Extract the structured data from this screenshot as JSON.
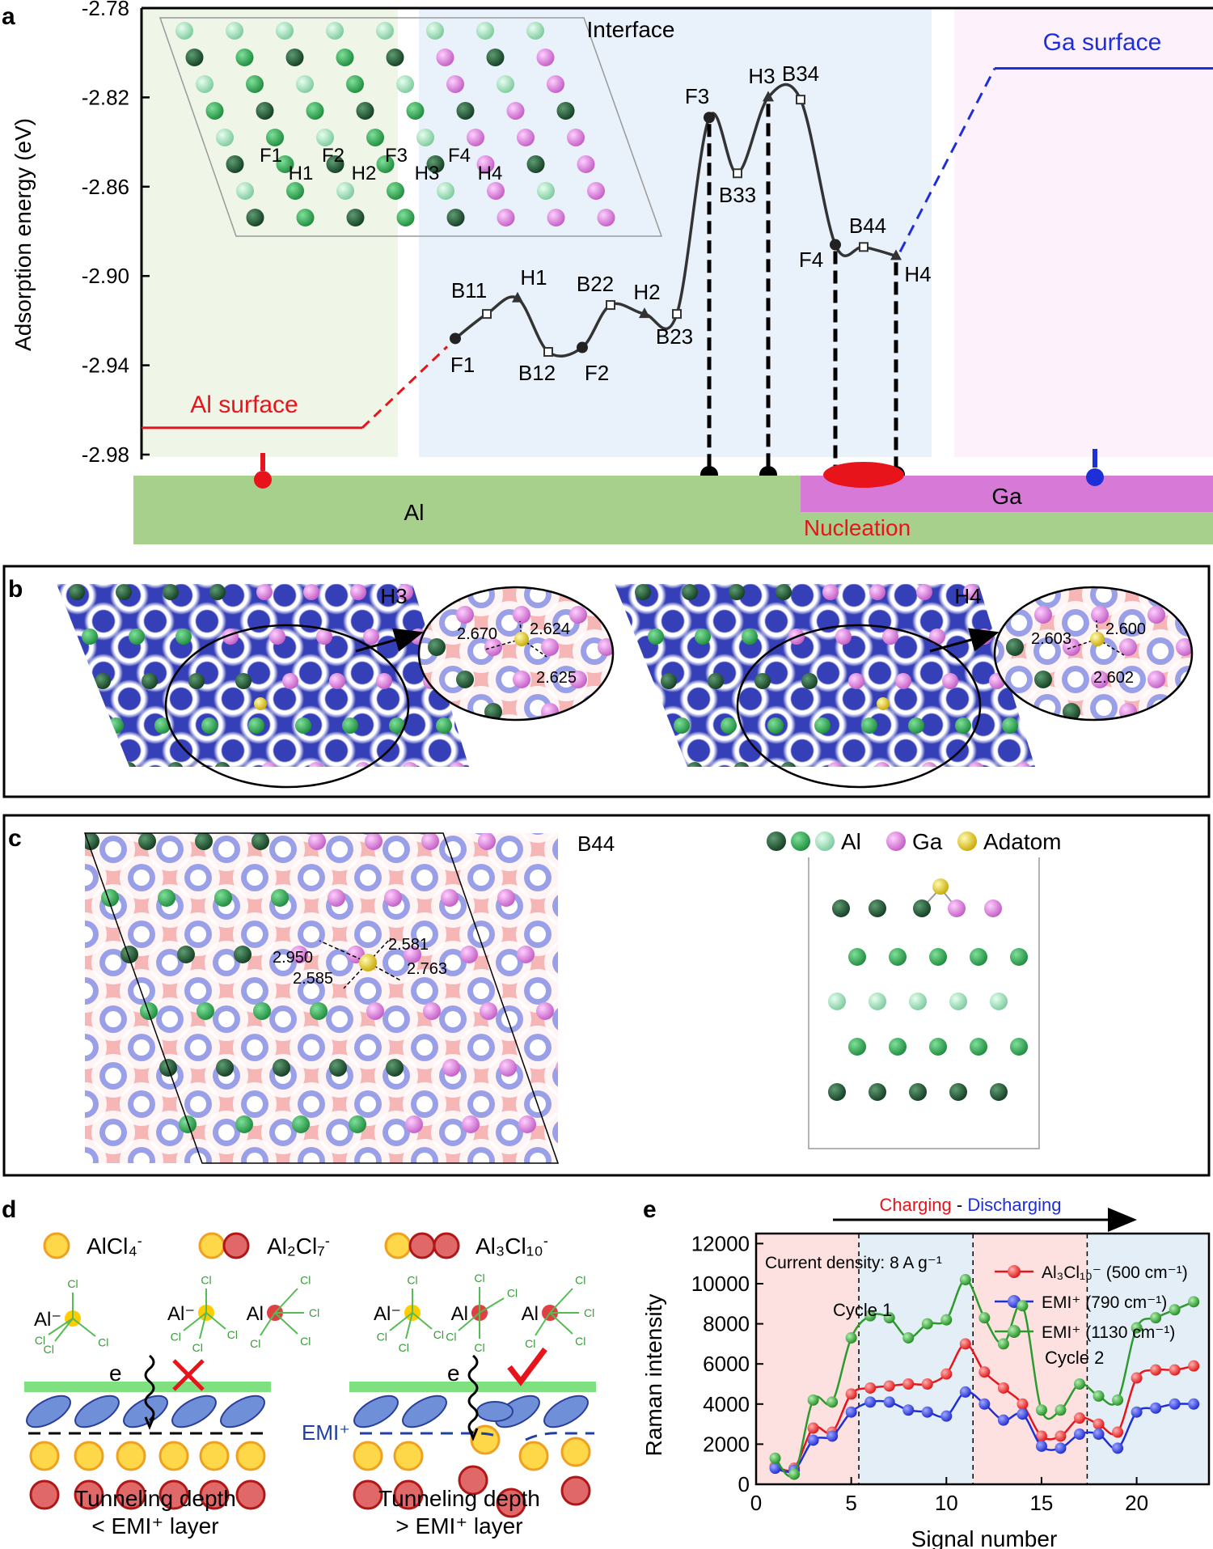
{
  "colors": {
    "al_dark": "#1f5a33",
    "al_mid": "#2fa44f",
    "al_light": "#9fe0b8",
    "ga": "#e07ee0",
    "adatom": "#e8d21a",
    "red": "#e8141c",
    "blue": "#1f2fd8",
    "green_line": "#2d9a2d",
    "al_bar": "#a8d08d",
    "ga_bar": "#d77ad7",
    "energy_line": "#333333"
  },
  "panel_a": {
    "label": "a",
    "ylabel": "Adsorption energy (eV)",
    "yticks": [
      "-2.78",
      "-2.82",
      "-2.86",
      "-2.90",
      "-2.94",
      "-2.98"
    ],
    "ylim": [
      -2.98,
      -2.78
    ],
    "region_interface": "Interface",
    "region_ga_surface": "Ga surface",
    "region_al_surface": "Al surface",
    "bar_al": "Al",
    "bar_ga": "Ga",
    "nucleation": "Nucleation",
    "inset_sites": [
      "F1",
      "H1",
      "F2",
      "H2",
      "F3",
      "H3",
      "F4",
      "H4"
    ],
    "al_surface_level": -2.968,
    "ga_surface_level": -2.807,
    "points": [
      {
        "name": "F1",
        "energy": -2.928,
        "kind": "circle",
        "label": "F1"
      },
      {
        "name": "B11",
        "energy": -2.917,
        "kind": "square",
        "label": "B11"
      },
      {
        "name": "H1",
        "energy": -2.91,
        "kind": "triangle",
        "label": "H1"
      },
      {
        "name": "B12",
        "energy": -2.934,
        "kind": "square",
        "label": "B12"
      },
      {
        "name": "F2",
        "energy": -2.932,
        "kind": "circle",
        "label": "F2"
      },
      {
        "name": "B22",
        "energy": -2.913,
        "kind": "square",
        "label": "B22"
      },
      {
        "name": "H2",
        "energy": -2.917,
        "kind": "triangle",
        "label": "H2"
      },
      {
        "name": "B23",
        "energy": -2.917,
        "kind": "square",
        "label": "B23"
      },
      {
        "name": "F3",
        "energy": -2.829,
        "kind": "circle",
        "label": "F3"
      },
      {
        "name": "B33",
        "energy": -2.854,
        "kind": "square",
        "label": "B33"
      },
      {
        "name": "H3",
        "energy": -2.82,
        "kind": "triangle",
        "label": "H3"
      },
      {
        "name": "B34",
        "energy": -2.821,
        "kind": "square",
        "label": "B34"
      },
      {
        "name": "F4",
        "energy": -2.886,
        "kind": "circle",
        "label": "F4"
      },
      {
        "name": "B44",
        "energy": -2.887,
        "kind": "square",
        "label": "B44"
      },
      {
        "name": "H4",
        "energy": -2.891,
        "kind": "triangle",
        "label": "H4"
      }
    ]
  },
  "panel_b": {
    "label": "b",
    "site_left": "H3",
    "site_right": "H4",
    "dists_left": [
      "2.670",
      "2.624",
      "2.625"
    ],
    "dists_right": [
      "2.603",
      "2.600",
      "2.602"
    ]
  },
  "panel_c": {
    "label": "c",
    "site": "B44",
    "dists": [
      "2.950",
      "2.581",
      "2.585",
      "2.763"
    ],
    "legend_al": "Al",
    "legend_ga": "Ga",
    "legend_adatom": "Adatom"
  },
  "panel_d": {
    "label": "d",
    "species": [
      "AlCl₄",
      "Al₂Cl₇",
      "Al₃Cl₁₀"
    ],
    "species_charge": "-",
    "atom_al": "Al",
    "atom_al_neg": "Al⁻",
    "atom_cl": "Cl",
    "electron": "e",
    "emi_label": "EMI⁺",
    "caption_left": [
      "Tunneling depth",
      "< EMI⁺ layer"
    ],
    "caption_right": [
      "Tunneling depth",
      "> EMI⁺ layer"
    ]
  },
  "panel_e": {
    "label": "e",
    "arrow_charging": "Charging",
    "arrow_sep": " - ",
    "arrow_discharging": "Discharging",
    "current_density": "Current density: 8 A g⁻¹",
    "cycle1": "Cycle 1",
    "cycle2": "Cycle 2",
    "xlabel": "Signal number",
    "ylabel": "Raman intensity"
  },
  "chart_data": {
    "type": "scatter",
    "title": "",
    "xlabel": "Signal number",
    "ylabel": "Raman intensity",
    "xlim": [
      0,
      23.8
    ],
    "ylim": [
      0,
      12500
    ],
    "xticks": [
      0,
      5,
      10,
      15,
      20
    ],
    "yticks": [
      0,
      2000,
      4000,
      6000,
      8000,
      10000,
      12000
    ],
    "cycle_boundaries": [
      5.4,
      11.4,
      17.4
    ],
    "series": [
      {
        "name": "Al₃Cl₁₀⁻ (500 cm⁻¹)",
        "color": "#e8141c",
        "x": [
          1,
          2,
          3,
          4,
          5,
          6,
          7,
          8,
          9,
          10,
          11,
          12,
          13,
          14,
          15,
          16,
          17,
          18,
          19,
          20,
          21,
          22,
          23
        ],
        "y": [
          900,
          800,
          2800,
          2600,
          4500,
          4800,
          4900,
          5000,
          5000,
          5500,
          7000,
          5600,
          4800,
          4000,
          2400,
          2400,
          3300,
          3000,
          2600,
          5300,
          5700,
          5700,
          5900
        ]
      },
      {
        "name": "EMI⁺ (790 cm⁻¹)",
        "color": "#1f2fd8",
        "x": [
          1,
          2,
          3,
          4,
          5,
          6,
          7,
          8,
          9,
          10,
          11,
          12,
          13,
          14,
          15,
          16,
          17,
          18,
          19,
          20,
          21,
          22,
          23
        ],
        "y": [
          800,
          700,
          2200,
          2400,
          3600,
          4100,
          4100,
          3700,
          3600,
          3400,
          4600,
          4000,
          3200,
          3500,
          1900,
          1800,
          2500,
          2500,
          1800,
          3600,
          3800,
          4000,
          4000
        ]
      },
      {
        "name": "EMI⁺ (1130 cm⁻¹)",
        "color": "#2d9a2d",
        "x": [
          1,
          2,
          3,
          4,
          5,
          6,
          7,
          8,
          9,
          10,
          11,
          12,
          13,
          14,
          15,
          16,
          17,
          18,
          19,
          20,
          21,
          22,
          23
        ],
        "y": [
          1300,
          500,
          4200,
          4100,
          7300,
          8400,
          8300,
          7300,
          8000,
          8200,
          10200,
          8300,
          7000,
          8900,
          3700,
          3700,
          5000,
          4400,
          4200,
          7800,
          8300,
          8700,
          9100
        ]
      }
    ]
  }
}
